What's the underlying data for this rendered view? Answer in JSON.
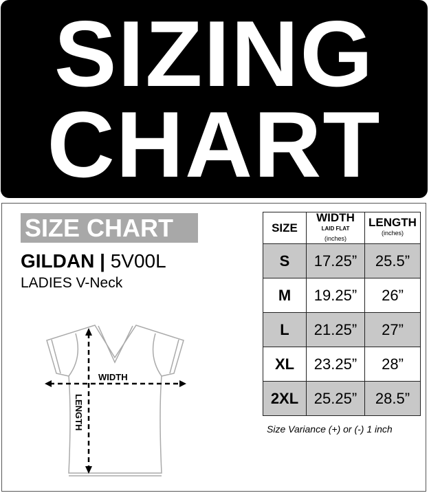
{
  "banner": {
    "line1": "SIZING",
    "line2": "CHART"
  },
  "label": "SIZE CHART",
  "brand": "GILDAN",
  "separator": "|",
  "model": "5V00L",
  "style": "LADIES V-Neck",
  "table": {
    "headers": {
      "size": "SIZE",
      "width": "WIDTH",
      "width_sub": "LAID FLAT",
      "width_unit": "(inches)",
      "length": "LENGTH",
      "length_unit": "(inches)"
    },
    "rows": [
      {
        "size": "S",
        "width": "17.25”",
        "length": "25.5”"
      },
      {
        "size": "M",
        "width": "19.25”",
        "length": "26”"
      },
      {
        "size": "L",
        "width": "21.25”",
        "length": "27”"
      },
      {
        "size": "XL",
        "width": "23.25”",
        "length": "28”"
      },
      {
        "size": "2XL",
        "width": "25.25”",
        "length": "28.5”"
      }
    ]
  },
  "note": "Size Variance (+) or (-) 1 inch",
  "diagram": {
    "width_label": "WIDTH",
    "length_label": "LENGTH"
  },
  "colors": {
    "banner": "#000000",
    "label_bg": "#a8a8a8",
    "row_shade": "#c8c8c8"
  }
}
